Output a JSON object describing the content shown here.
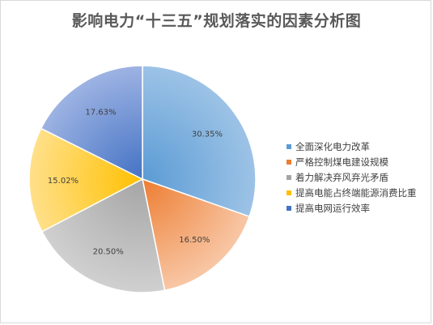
{
  "chart_data": {
    "type": "pie",
    "title": "影响电力“十三五”规划落实的因素分析图",
    "categories": [
      "全面深化电力改革",
      "严格控制煤电建设规模",
      "着力解决弃风弃光矛盾",
      "提高电能占终端能源消费比重",
      "提高电网运行效率"
    ],
    "values": [
      30.35,
      16.5,
      20.5,
      15.02,
      17.63
    ],
    "data_labels": [
      "30.35%",
      "16.50%",
      "20.50%",
      "15.02%",
      "17.63%"
    ],
    "colors": [
      "#5B9BD5",
      "#ED7D31",
      "#A5A5A5",
      "#FFC000",
      "#4472C4"
    ],
    "gradient_light_colors": [
      "#9DC3E6",
      "#F8C7A6",
      "#D0D0D0",
      "#FFE08A",
      "#9DB3E3"
    ],
    "start_angle_deg": 0,
    "direction": "clockwise",
    "legend_position": "right"
  }
}
